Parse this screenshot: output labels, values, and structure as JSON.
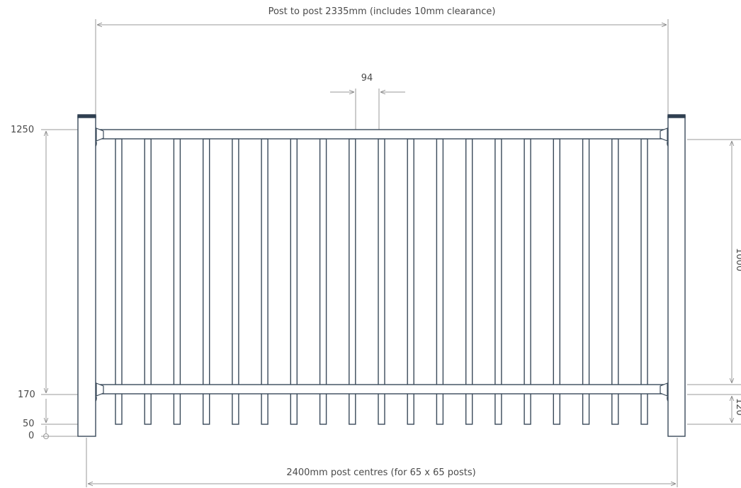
{
  "dimensions": {
    "top_label": "Post to post 2335mm (includes 10mm clearance)",
    "bottom_label": "2400mm post centres (for 65 x 65 posts)",
    "picket_gap_label": "94",
    "right_height_label": "1000",
    "right_bottom_label": "120"
  },
  "height_scale": {
    "labels": [
      "1250",
      "170",
      "50",
      "0"
    ]
  },
  "fence": {
    "picket_count": 19,
    "colors": {
      "frame": "#3a4a5a",
      "dimension_line": "#9a9a9a",
      "post_cap": "#2f3f50"
    }
  }
}
